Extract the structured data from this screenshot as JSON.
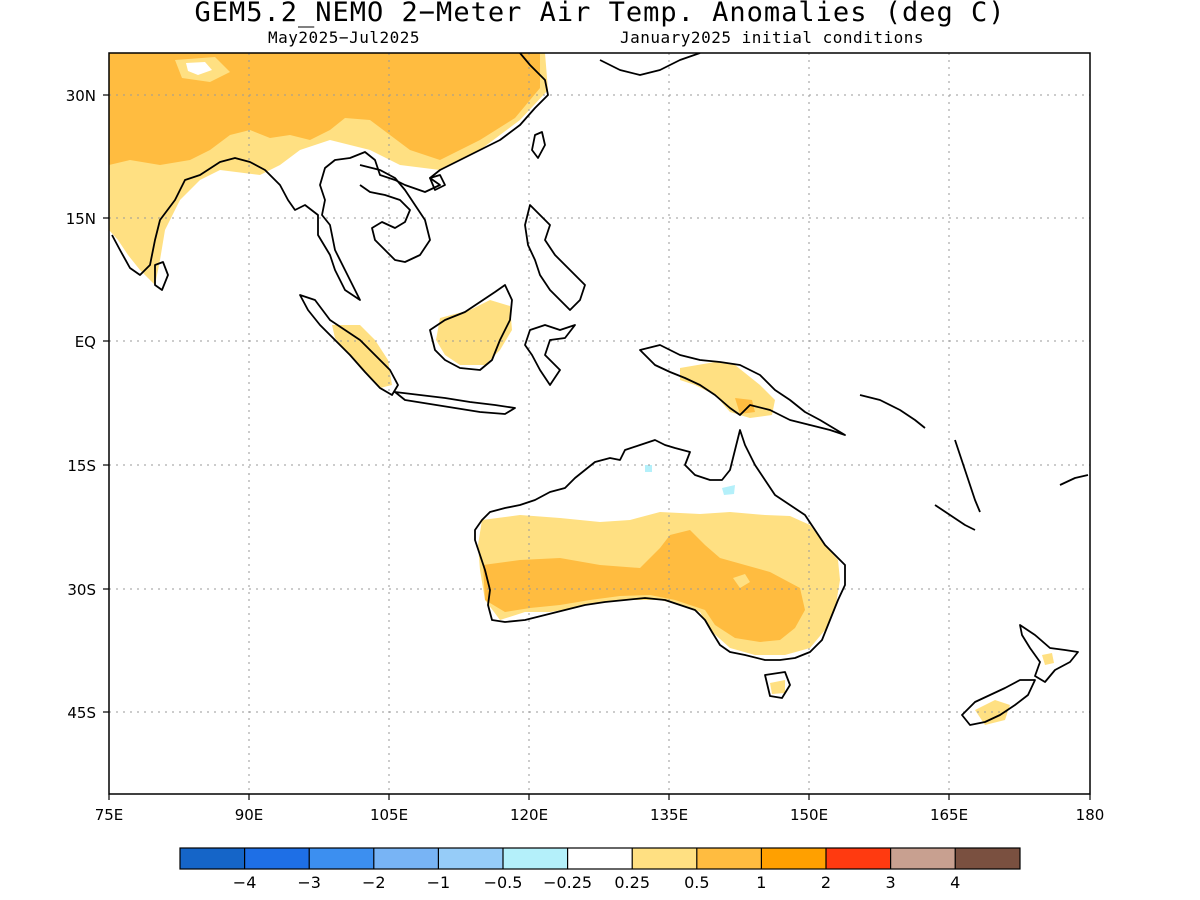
{
  "title": "GEM5.2_NEMO 2−Meter Air Temp. Anomalies (deg C)",
  "subtitle_left": "May2025−Jul2025",
  "subtitle_right": "January2025 initial conditions",
  "axes": {
    "lon_labels": [
      "75E",
      "90E",
      "105E",
      "120E",
      "135E",
      "150E",
      "165E",
      "180"
    ],
    "lat_labels": [
      "30N",
      "15N",
      "EQ",
      "15S",
      "30S",
      "45S"
    ]
  },
  "map": {
    "lon_range": [
      75,
      180
    ],
    "lat_range": [
      -55,
      35
    ],
    "grid": "dotted",
    "land_color": "#000000",
    "anomaly_regions": [
      {
        "region": "China / Tibet",
        "category": "0.5 to 1"
      },
      {
        "region": "India / South Asia",
        "category": "0.25 to 0.5"
      },
      {
        "region": "Sumatra",
        "category": "0.25 to 0.5"
      },
      {
        "region": "Borneo",
        "category": "0.25 to 0.5"
      },
      {
        "region": "New Guinea",
        "category": "0.25 to 0.5"
      },
      {
        "region": "Northern Australia",
        "category": "0.25 to 0.5"
      },
      {
        "region": "Central / Southeast Australia",
        "category": "0.5 to 1"
      },
      {
        "region": "New Zealand South Island",
        "category": "0.25 to 0.5"
      },
      {
        "region": "Northern Australia coast",
        "category": "-0.5 to -0.25"
      }
    ]
  },
  "colorbar": {
    "labels": [
      "−4",
      "−3",
      "−2",
      "−1",
      "−0.5",
      "−0.25",
      "0.25",
      "0.5",
      "1",
      "2",
      "3",
      "4"
    ],
    "colors": [
      "#1565C8",
      "#1E6FE6",
      "#3C8FF0",
      "#78B4F5",
      "#96CCF8",
      "#B4F0FA",
      "#FFFFFF",
      "#FFE082",
      "#FFBC40",
      "#FFA000",
      "#FF3A10",
      "#C8A090",
      "#7A5040"
    ]
  }
}
